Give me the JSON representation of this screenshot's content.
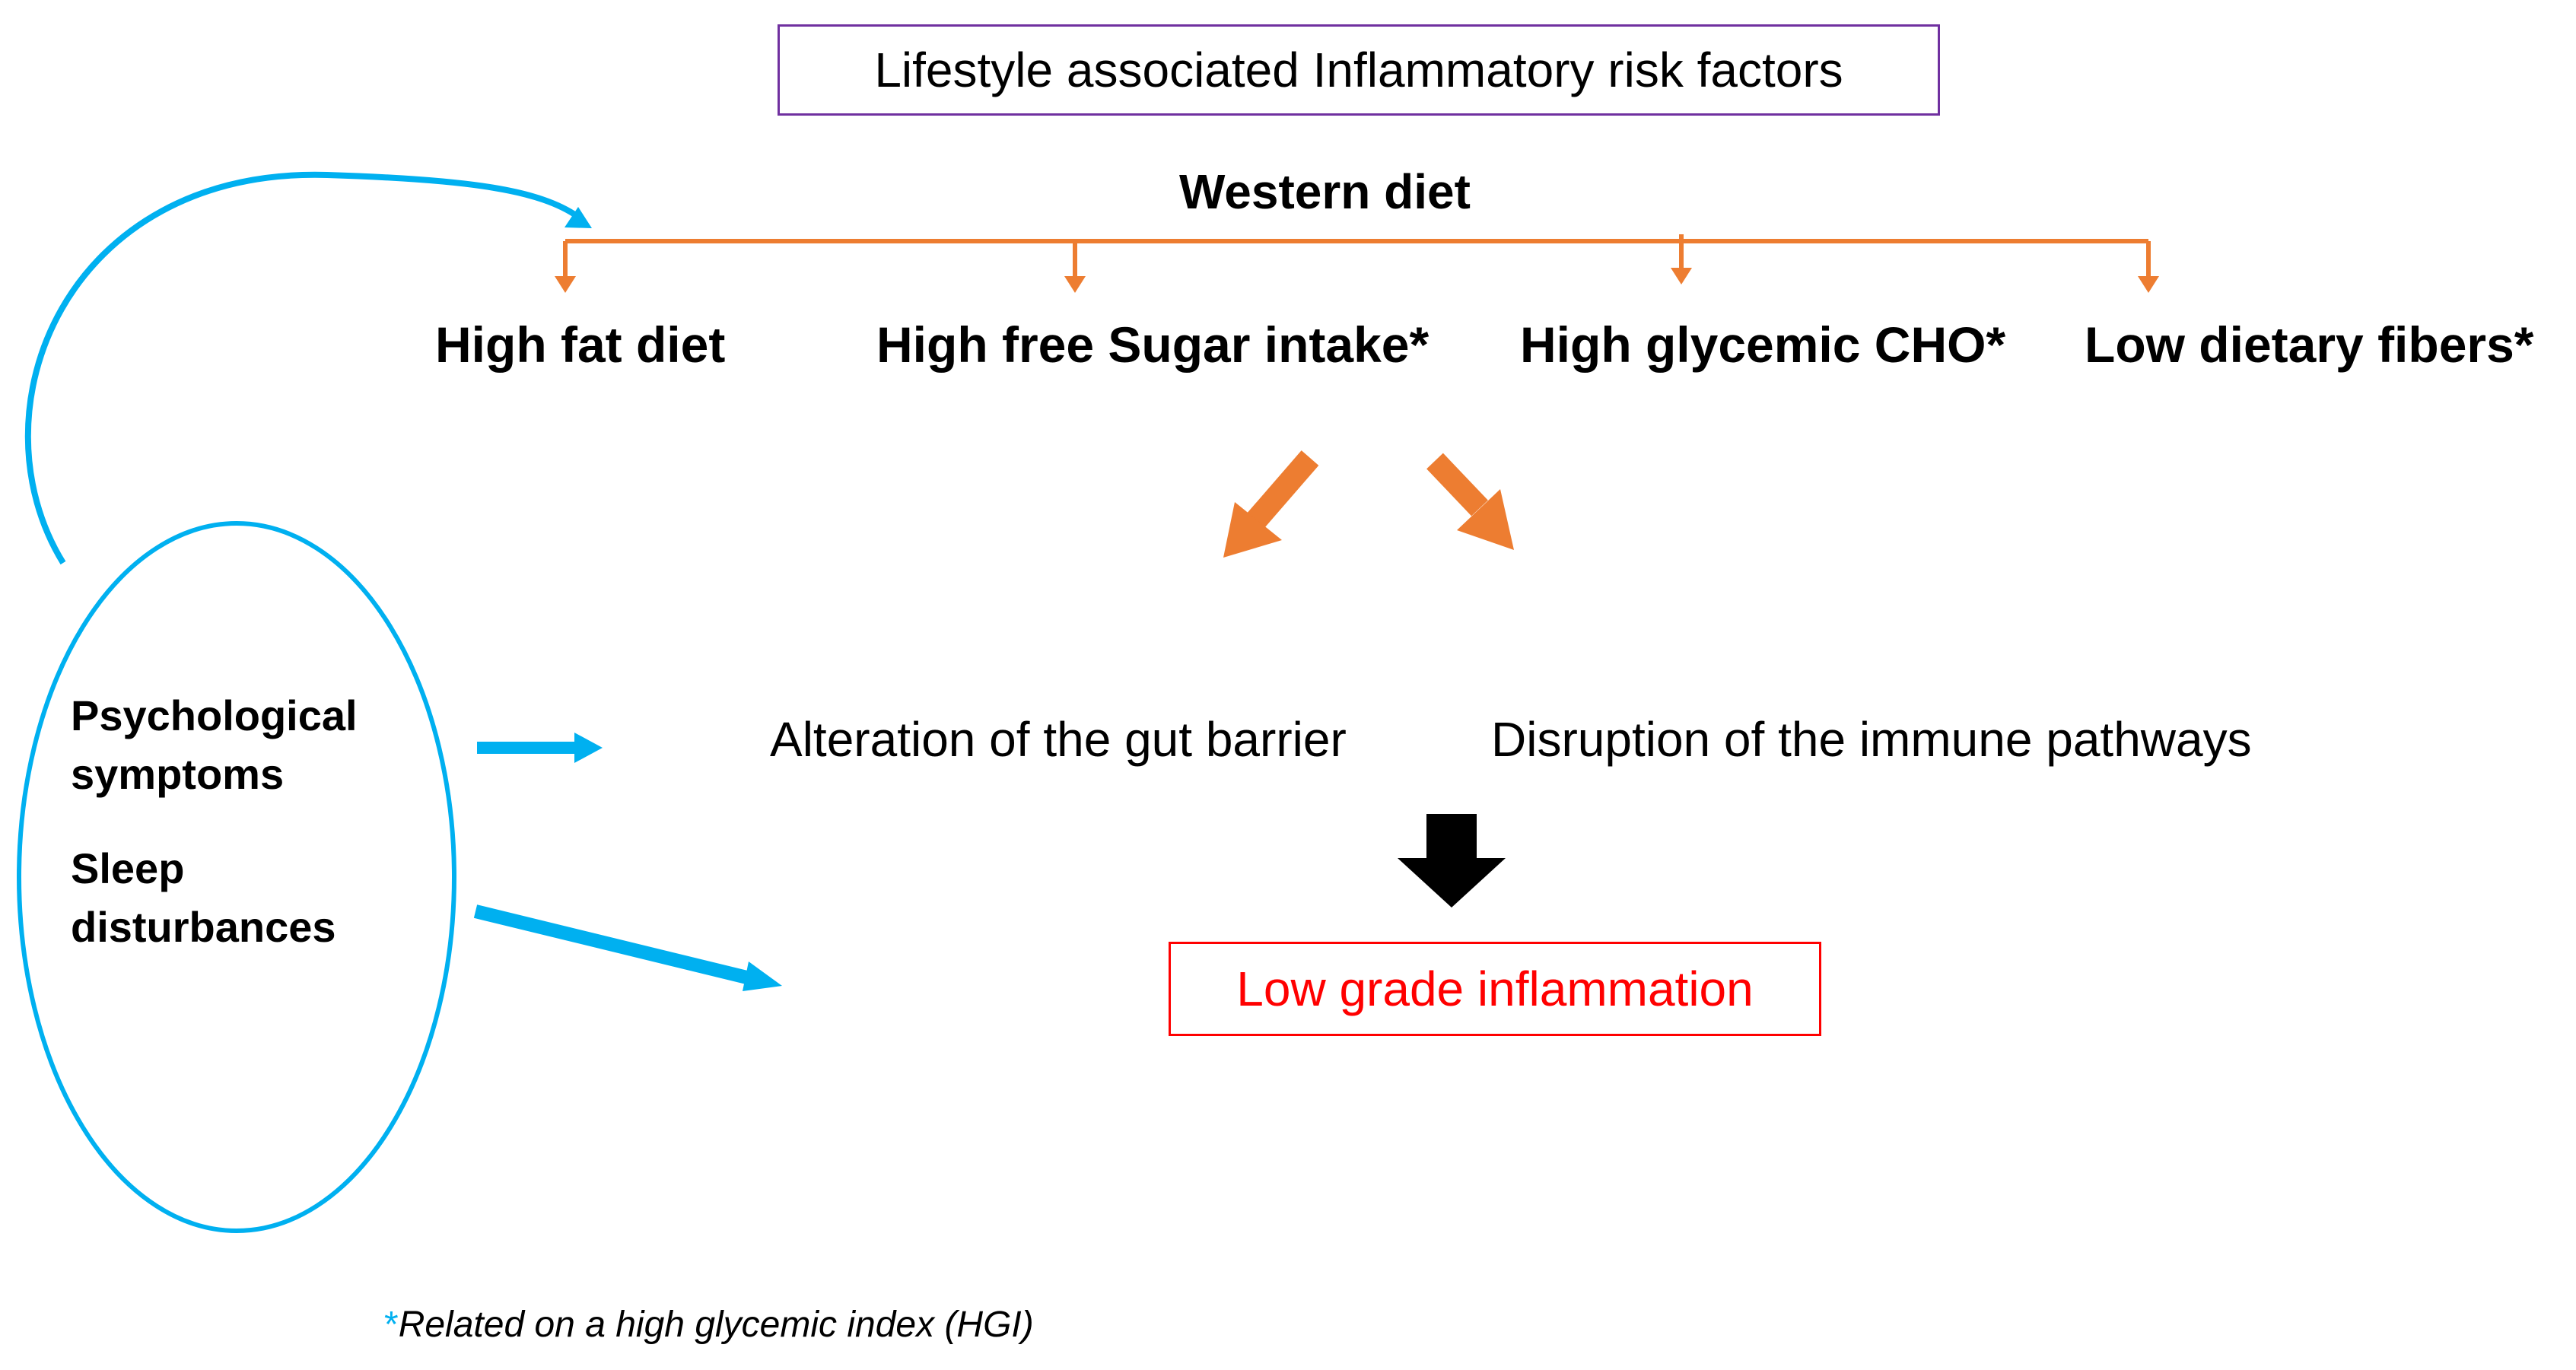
{
  "title": "Lifestyle associated Inflammatory risk factors",
  "western_diet": {
    "label": "Western diet",
    "factors": [
      "High fat  diet",
      "High free Sugar intake*",
      "High glycemic CHO*",
      "Low dietary fibers*"
    ]
  },
  "effects": [
    "Alteration of the gut barrier",
    "Disruption of the immune pathways"
  ],
  "outcome": "Low grade inflammation",
  "psychological": {
    "line1": "Psychological",
    "line2": "symptoms",
    "line3": "Sleep",
    "line4": "disturbances"
  },
  "footnote": {
    "marker": "*",
    "text": "Related on a high glycemic index (HGI)"
  },
  "colors": {
    "title_border": "#7030a0",
    "diet_arrows": "#ed7d31",
    "blue_arrows": "#00b0f0",
    "outcome_text": "#ff0000",
    "outcome_border": "#ff0000",
    "down_arrow": "#000000"
  }
}
